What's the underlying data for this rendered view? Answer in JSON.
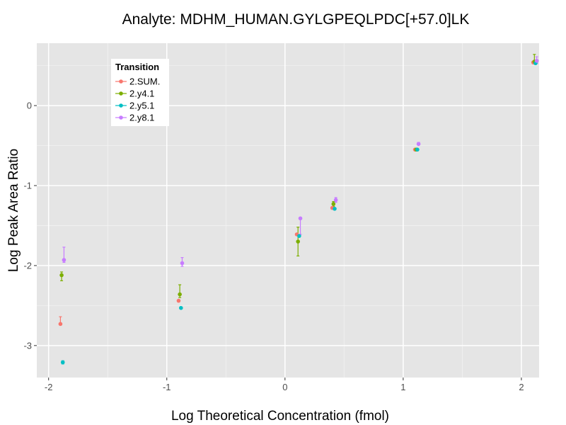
{
  "chart_data": {
    "type": "scatter",
    "title": "Analyte: MDHM_HUMAN.GYLGPEQLPDC[+57.0]LK",
    "xlabel": "Log Theoretical Concentration (fmol)",
    "ylabel": "Log Peak Area Ratio",
    "xlim": [
      -2.1,
      2.15
    ],
    "ylim": [
      -3.4,
      0.78
    ],
    "x_ticks": [
      -2,
      -1,
      0,
      1,
      2
    ],
    "x_tick_labels": [
      "-2",
      "-1",
      "0",
      "1",
      "2"
    ],
    "y_ticks": [
      -3,
      -2,
      -1,
      0
    ],
    "y_tick_labels": [
      "-3",
      "-2",
      "-1",
      "0"
    ],
    "grid": true,
    "legend": {
      "title": "Transition",
      "position": "top-left"
    },
    "series": [
      {
        "name": "2.SUM.",
        "color": "#F8766D",
        "points": [
          {
            "x": -1.9,
            "y": -2.73,
            "lo": -2.73,
            "hi": -2.64
          },
          {
            "x": -0.9,
            "y": -2.44,
            "lo": -2.44,
            "hi": -2.44
          },
          {
            "x": 0.1,
            "y": -1.61,
            "lo": -1.61,
            "hi": -1.61
          },
          {
            "x": 0.4,
            "y": -1.28,
            "lo": -1.28,
            "hi": -1.28
          },
          {
            "x": 1.1,
            "y": -0.55,
            "lo": -0.55,
            "hi": -0.55
          },
          {
            "x": 2.1,
            "y": 0.54,
            "lo": 0.54,
            "hi": 0.54
          }
        ]
      },
      {
        "name": "2.y4.1",
        "color": "#7CAE00",
        "points": [
          {
            "x": -1.89,
            "y": -2.12,
            "lo": -2.19,
            "hi": -2.08
          },
          {
            "x": -0.89,
            "y": -2.36,
            "lo": -2.4,
            "hi": -2.24
          },
          {
            "x": 0.11,
            "y": -1.7,
            "lo": -1.88,
            "hi": -1.52
          },
          {
            "x": 0.41,
            "y": -1.23,
            "lo": -1.26,
            "hi": -1.2
          },
          {
            "x": 1.11,
            "y": -0.55,
            "lo": -0.55,
            "hi": -0.55
          },
          {
            "x": 2.11,
            "y": 0.55,
            "lo": 0.52,
            "hi": 0.64
          }
        ]
      },
      {
        "name": "2.y5.1",
        "color": "#00BFC4",
        "points": [
          {
            "x": -1.88,
            "y": -3.21,
            "lo": -3.23,
            "hi": -3.19
          },
          {
            "x": -0.88,
            "y": -2.53,
            "lo": -2.53,
            "hi": -2.53
          },
          {
            "x": 0.12,
            "y": -1.63,
            "lo": -1.63,
            "hi": -1.63
          },
          {
            "x": 0.42,
            "y": -1.29,
            "lo": -1.29,
            "hi": -1.29
          },
          {
            "x": 1.12,
            "y": -0.55,
            "lo": -0.55,
            "hi": -0.55
          },
          {
            "x": 2.12,
            "y": 0.53,
            "lo": 0.53,
            "hi": 0.53
          }
        ]
      },
      {
        "name": "2.y8.1",
        "color": "#C77CFF",
        "points": [
          {
            "x": -1.87,
            "y": -1.93,
            "lo": -1.96,
            "hi": -1.77
          },
          {
            "x": -0.87,
            "y": -1.97,
            "lo": -2.01,
            "hi": -1.9
          },
          {
            "x": 0.13,
            "y": -1.41,
            "lo": -1.61,
            "hi": -1.4
          },
          {
            "x": 0.43,
            "y": -1.18,
            "lo": -1.21,
            "hi": -1.15
          },
          {
            "x": 1.13,
            "y": -0.48,
            "lo": -0.49,
            "hi": -0.46
          },
          {
            "x": 2.13,
            "y": 0.56,
            "lo": 0.53,
            "hi": 0.61
          }
        ]
      }
    ]
  }
}
